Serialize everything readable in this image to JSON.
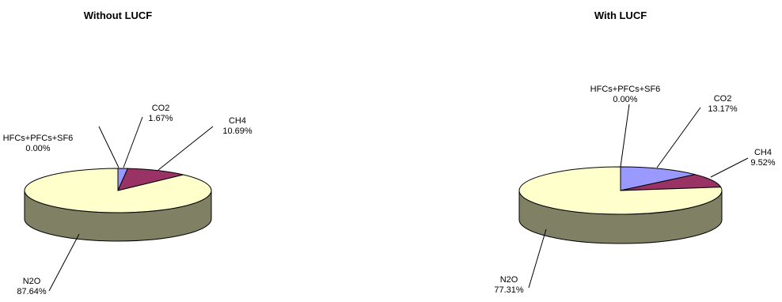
{
  "colors": {
    "CO2": "#9999ff",
    "CH4": "#993366",
    "N2O": "#ffffcc",
    "HFCs+PFCs+SF6": "#ffffcc",
    "N2O_side": "#808064",
    "outline": "#000000"
  },
  "chart_data": [
    {
      "type": "pie",
      "title": "Without LUCF",
      "slices": [
        {
          "label": "HFCs+PFCs+SF6",
          "value": 0.0,
          "text": "0.00%"
        },
        {
          "label": "CO2",
          "value": 1.67,
          "text": "1.67%"
        },
        {
          "label": "CH4",
          "value": 10.69,
          "text": "10.69%"
        },
        {
          "label": "N2O",
          "value": 87.64,
          "text": "87.64%"
        }
      ]
    },
    {
      "type": "pie",
      "title": "With LUCF",
      "slices": [
        {
          "label": "HFCs+PFCs+SF6",
          "value": 0.0,
          "text": "0.00%"
        },
        {
          "label": "CO2",
          "value": 13.17,
          "text": "13.17%"
        },
        {
          "label": "CH4",
          "value": 9.52,
          "text": "9.52%"
        },
        {
          "label": "N2O",
          "value": 77.31,
          "text": "77.31%"
        }
      ]
    }
  ]
}
